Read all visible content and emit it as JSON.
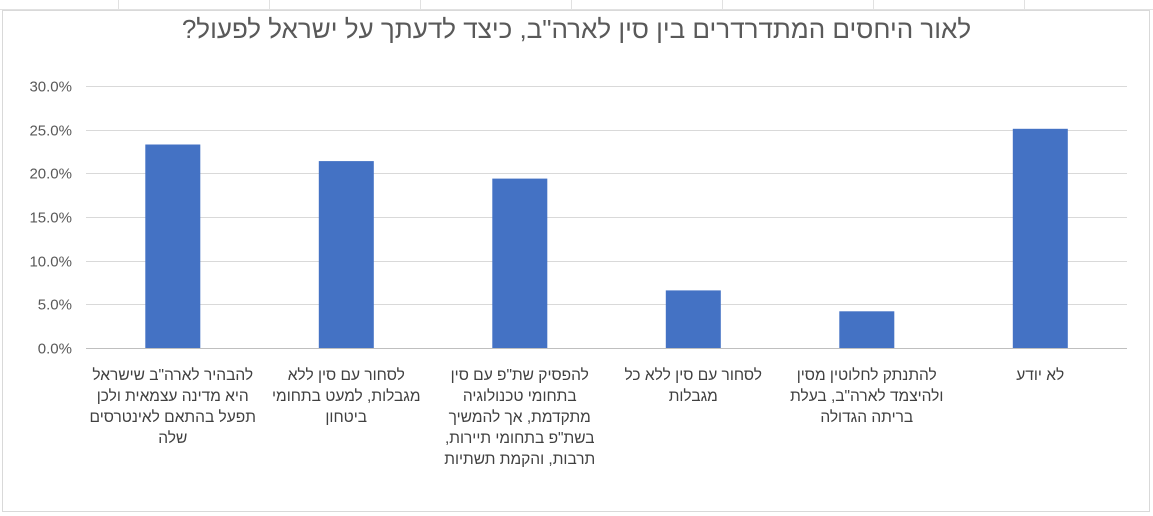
{
  "chart_data": {
    "type": "bar",
    "title": "לאור היחסים המתדרדרים בין סין לארה\"ב, כיצד לדעתך על ישראל לפעול?",
    "categories": [
      "להבהיר לארה\"ב שישראל היא מדינה עצמאית ולכן תפעל בהתאם לאינטרסים שלה",
      "לסחור עם סין ללא מגבלות, למעט בתחומי ביטחון",
      "להפסיק שת\"פ עם סין בתחומי טכנולוגיה מתקדמת, אך להמשיך בשת\"פ בתחומי תיירות, תרבות, והקמת תשתיות",
      "לסחור עם סין ללא כל מגבלות",
      "להתנתק לחלוטין מסין ולהיצמד לארה\"ב, בעלת בריתה הגדולה",
      "לא יודע"
    ],
    "values": [
      23.3,
      21.4,
      19.4,
      6.6,
      4.2,
      25.1
    ],
    "ylim": [
      0,
      30
    ],
    "yticks": [
      "0.0%",
      "5.0%",
      "10.0%",
      "15.0%",
      "20.0%",
      "25.0%",
      "30.0%"
    ],
    "ytick_values": [
      0,
      5,
      10,
      15,
      20,
      25,
      30
    ],
    "grid": true,
    "bar_color": "#4472c4",
    "xlabel": "",
    "ylabel": ""
  }
}
